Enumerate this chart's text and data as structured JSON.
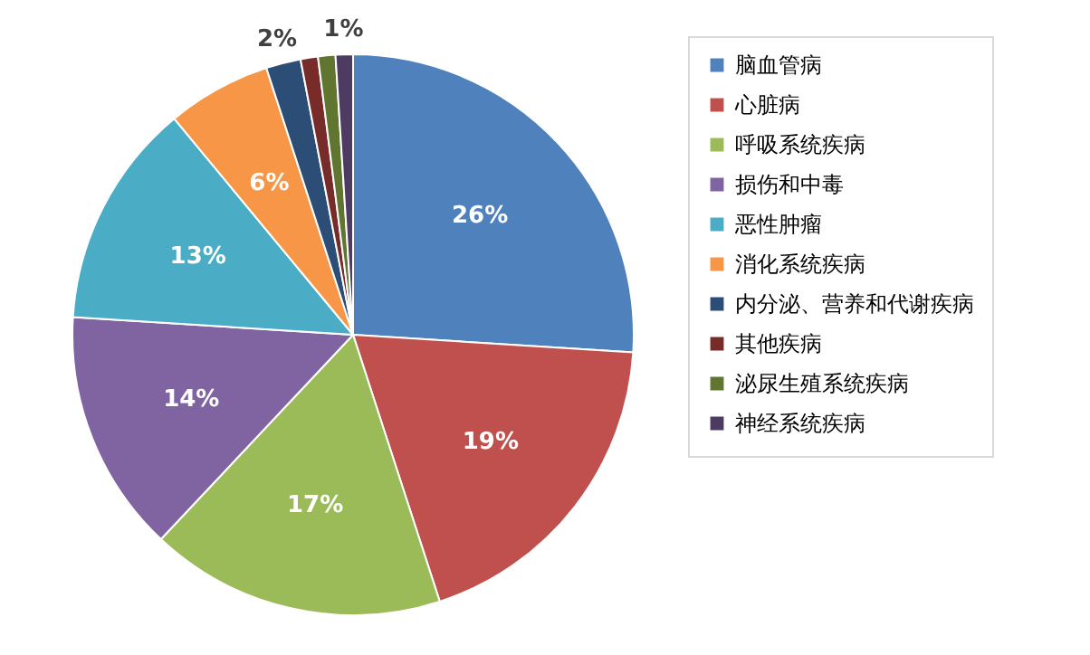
{
  "chart_data": {
    "type": "pie",
    "categories": [
      "脑血管病",
      "心脏病",
      "呼吸系统疾病",
      "损伤和中毒",
      "恶性肿瘤",
      "消化系统疾病",
      "内分泌、营养和代谢疾病",
      "其他疾病",
      "泌尿生殖系统疾病",
      "神经系统疾病"
    ],
    "values": [
      26,
      19,
      17,
      14,
      13,
      6,
      2,
      1,
      1,
      1
    ],
    "colors": [
      "#4f81bd",
      "#c0504d",
      "#9bbb59",
      "#8064a2",
      "#4bacc6",
      "#f79646",
      "#2c4d75",
      "#772c2a",
      "#5f7530",
      "#4d3b62"
    ],
    "value_labels": [
      "26%",
      "19%",
      "17%",
      "14%",
      "13%",
      "6%",
      "2%",
      null,
      null,
      "1%"
    ],
    "legend": "right"
  }
}
